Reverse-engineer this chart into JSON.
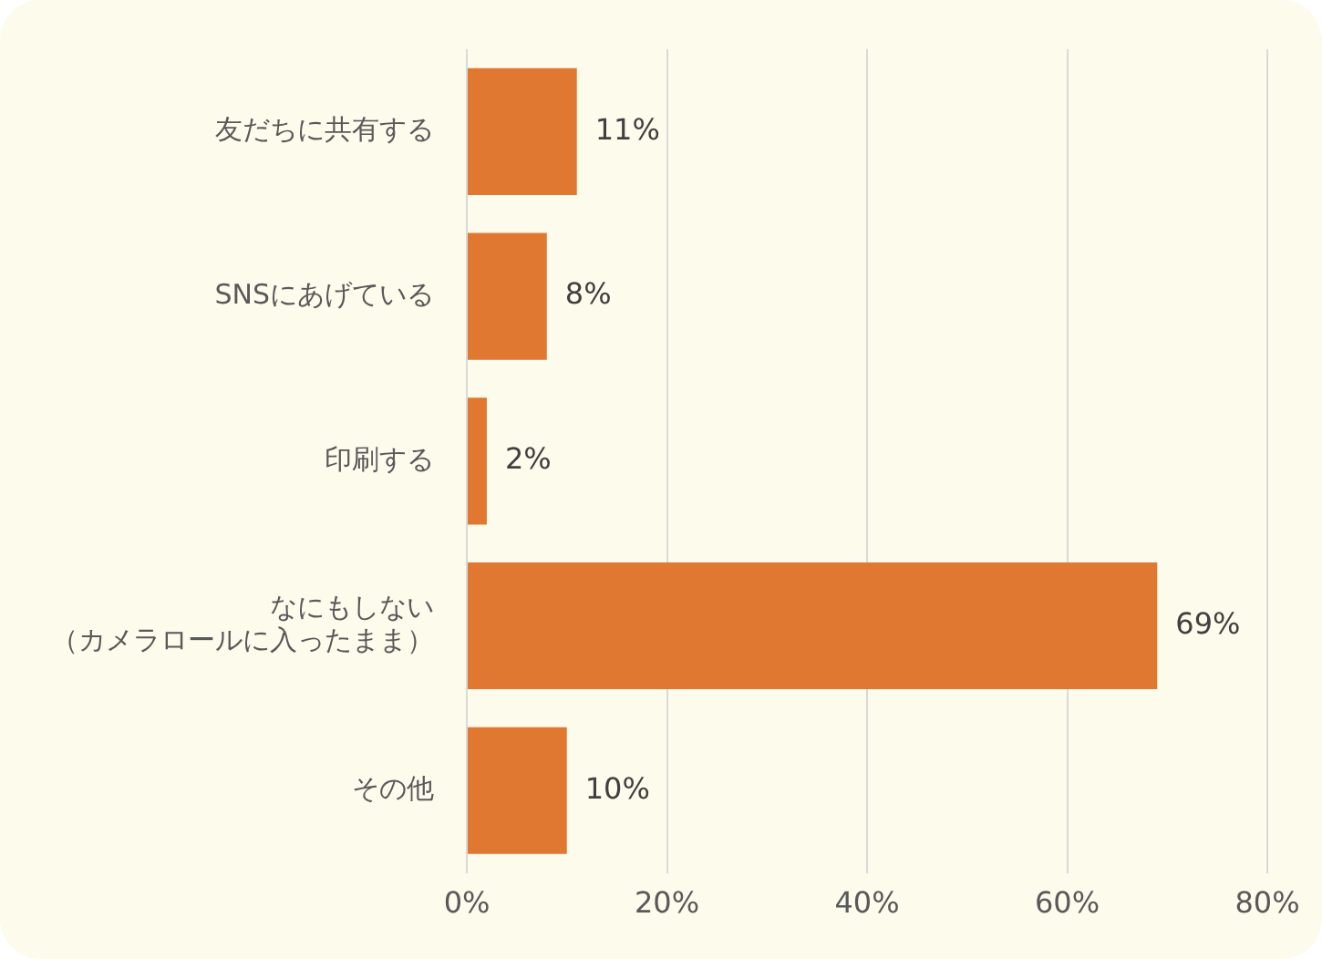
{
  "chart_data": {
    "type": "bar",
    "orientation": "horizontal",
    "categories": [
      "友だちに共有する",
      "SNSにあげている",
      "印刷する",
      "なにもしない（カメラロールに入ったまま）",
      "その他"
    ],
    "values": [
      11,
      8,
      2,
      69,
      10
    ],
    "value_labels": [
      "11%",
      "8%",
      "2%",
      "69%",
      "10%"
    ],
    "color": "#e07832",
    "xlim": [
      0,
      80
    ],
    "xticks": [
      {
        "value": 0,
        "label": "0%"
      },
      {
        "value": 20,
        "label": "20%"
      },
      {
        "value": 40,
        "label": "40%"
      },
      {
        "value": 60,
        "label": "60%"
      },
      {
        "value": 80,
        "label": "80%"
      }
    ],
    "grid": "x",
    "legend": false
  }
}
